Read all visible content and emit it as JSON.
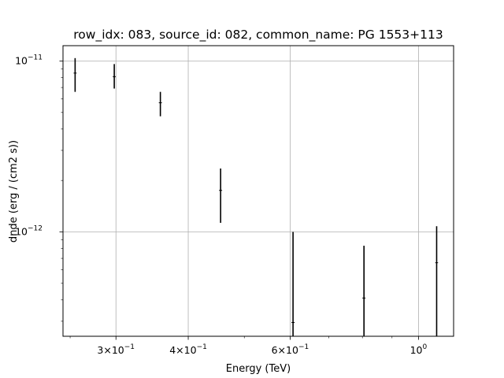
{
  "chart_data": {
    "type": "scatter",
    "title": "row_idx: 083, source_id: 082, common_name: PG 1553+113",
    "xlabel": "Energy (TeV)",
    "ylabel": "dnde (erg / (cm2 s))",
    "xscale": "log",
    "yscale": "log",
    "xlim": [
      0.243,
      1.15
    ],
    "ylim": [
      2.45e-13,
      1.23e-11
    ],
    "grid": true,
    "x_ticks": [
      {
        "value": 0.3,
        "mantissa": "3",
        "exp": "−1"
      },
      {
        "value": 0.4,
        "mantissa": "4",
        "exp": "−1"
      },
      {
        "value": 0.6,
        "mantissa": "6",
        "exp": "−1"
      },
      {
        "value": 1.0,
        "mantissa": "",
        "exp": "0"
      }
    ],
    "y_ticks": [
      {
        "value": 1e-11,
        "exp": "−11"
      },
      {
        "value": 1e-12,
        "exp": "−12"
      }
    ],
    "series": [
      {
        "points": [
          {
            "x": 0.255,
            "y": 8.5e-12,
            "y_lo": 6.6e-12,
            "y_hi": 1.04e-11,
            "x_lo": 0.2535,
            "x_hi": 0.2565
          },
          {
            "x": 0.298,
            "y": 8.1e-12,
            "y_lo": 6.9e-12,
            "y_hi": 9.6e-12,
            "x_lo": 0.2962,
            "x_hi": 0.2998
          },
          {
            "x": 0.358,
            "y": 5.7e-12,
            "y_lo": 4.75e-12,
            "y_hi": 6.6e-12,
            "x_lo": 0.3558,
            "x_hi": 0.3602
          },
          {
            "x": 0.455,
            "y": 1.75e-12,
            "y_lo": 1.13e-12,
            "y_hi": 2.35e-12,
            "x_lo": 0.4522,
            "x_hi": 0.4578
          },
          {
            "x": 0.607,
            "y": 2.95e-13,
            "y_lo": 2.45e-13,
            "y_hi": 1e-12,
            "x_lo": 0.6032,
            "x_hi": 0.6108
          },
          {
            "x": 0.805,
            "y": 4.1e-13,
            "y_lo": 2.45e-13,
            "y_hi": 8.3e-13,
            "x_lo": 0.8,
            "x_hi": 0.81
          },
          {
            "x": 1.075,
            "y": 6.6e-13,
            "y_lo": 2.45e-13,
            "y_hi": 1.08e-12,
            "x_lo": 1.069,
            "x_hi": 1.081
          }
        ]
      }
    ]
  }
}
